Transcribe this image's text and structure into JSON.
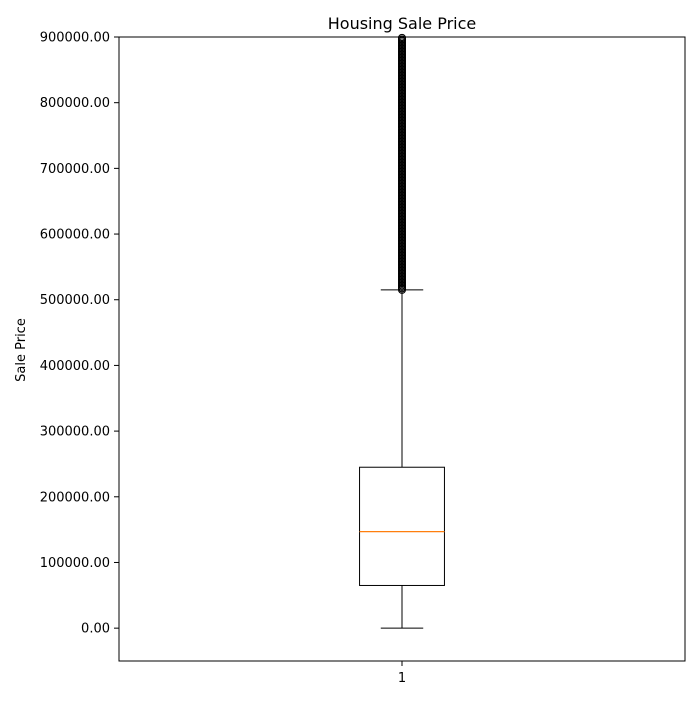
{
  "chart_data": {
    "type": "box",
    "title": "Housing Sale Price",
    "xlabel": "",
    "ylabel": "Sale Price",
    "ylim": [
      -50000,
      900000
    ],
    "yticks": [
      0,
      100000,
      200000,
      300000,
      400000,
      500000,
      600000,
      700000,
      800000,
      900000
    ],
    "ytick_labels": [
      "0.00",
      "100000.00",
      "200000.00",
      "300000.00",
      "400000.00",
      "500000.00",
      "600000.00",
      "700000.00",
      "800000.00",
      "900000.00"
    ],
    "categories": [
      "1"
    ],
    "boxes": [
      {
        "category": "1",
        "whisker_low": 0,
        "q1": 65000,
        "median": 147000,
        "q3": 245000,
        "whisker_high": 515000,
        "outlier_min": 515000,
        "outlier_max": 900000
      }
    ],
    "grid": false,
    "colors": {
      "box": "#000000",
      "median": "#ff7f0e",
      "outliers": "#000000"
    }
  }
}
